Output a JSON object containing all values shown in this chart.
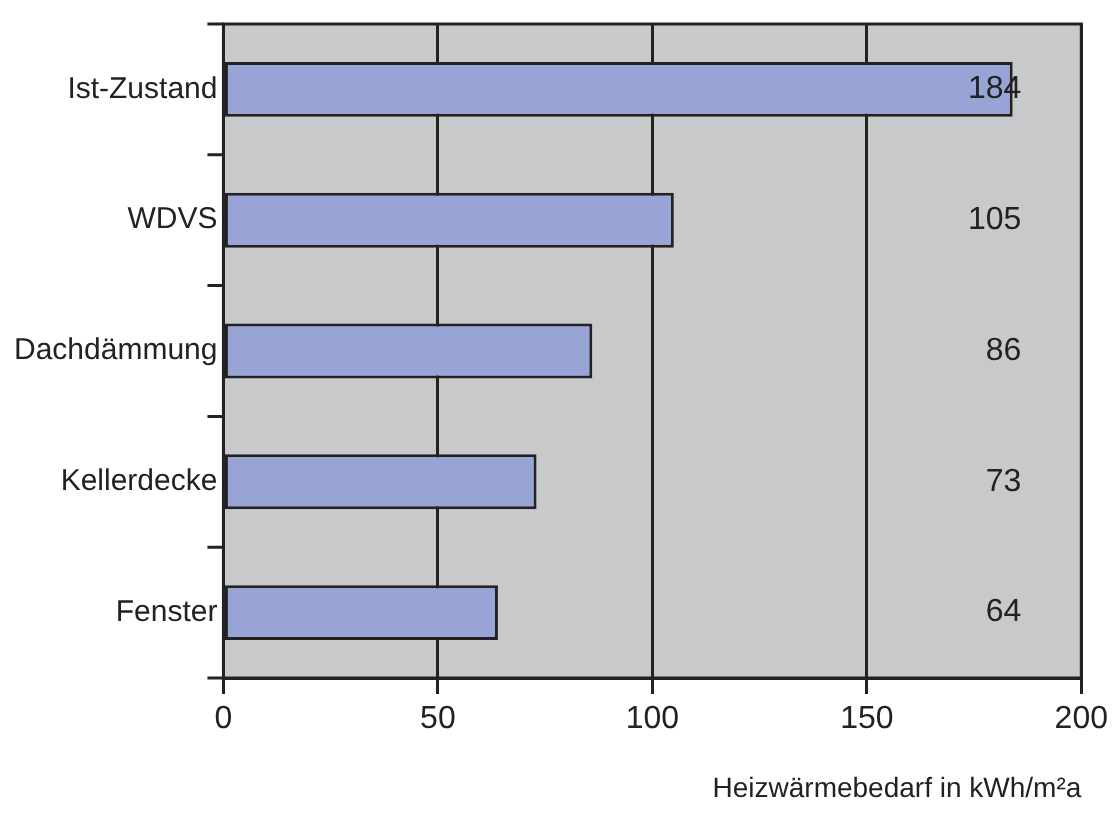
{
  "chart_data": {
    "type": "bar",
    "orientation": "horizontal",
    "categories": [
      "Ist-Zustand",
      "WDVS",
      "Dachdämmung",
      "Kellerdecke",
      "Fenster"
    ],
    "values": [
      184,
      105,
      86,
      73,
      64
    ],
    "color": "#98a3d6",
    "xlim": [
      0,
      200
    ],
    "xticks": [
      0,
      50,
      100,
      150,
      200
    ],
    "grid": "x",
    "data_labels": true,
    "legend": false,
    "xlabel": "Heizwärmebedarf in kWh/m²a"
  }
}
